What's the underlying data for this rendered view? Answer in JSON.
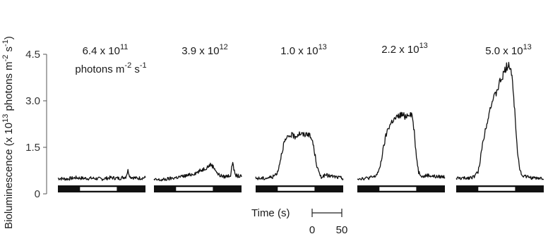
{
  "chart_data": {
    "type": "line",
    "ylabel": {
      "text": "Bioluminescence (x 10",
      "exp": "13",
      "text2": " photons m",
      "exp2": "-2",
      "text3": " s",
      "exp3": "-1",
      "text4": ")"
    },
    "ylim": [
      0,
      4.5
    ],
    "yticks": [
      {
        "value": 0,
        "label": "0"
      },
      {
        "value": 1.5,
        "label": "1.5"
      },
      {
        "value": 3.0,
        "label": "3.0"
      },
      {
        "value": 4.5,
        "label": "4.5"
      }
    ],
    "panel_x_range": [
      0,
      200
    ],
    "light_period": [
      50,
      135
    ],
    "time_scale": {
      "label": "Time (s)",
      "start": "0",
      "end": "50"
    },
    "first_panel_units": {
      "text": "photons m",
      "exp": "-2",
      "text2": " s",
      "exp2": "-1"
    },
    "series": [
      {
        "name": "6.4 x 10^11",
        "label": {
          "mantissa": "6.4 x 10",
          "exp": "11"
        },
        "x": [
          0,
          20,
          40,
          60,
          80,
          100,
          120,
          140,
          155,
          160,
          165,
          180,
          200
        ],
        "y": [
          0.5,
          0.48,
          0.52,
          0.5,
          0.5,
          0.48,
          0.52,
          0.5,
          0.55,
          0.75,
          0.55,
          0.5,
          0.52
        ]
      },
      {
        "name": "3.9 x 10^12",
        "label": {
          "mantissa": "3.9 x 10",
          "exp": "12"
        },
        "x": [
          0,
          20,
          40,
          60,
          80,
          100,
          120,
          130,
          140,
          145,
          150,
          160,
          175,
          180,
          185,
          200
        ],
        "y": [
          0.45,
          0.45,
          0.5,
          0.55,
          0.6,
          0.7,
          0.85,
          0.95,
          0.8,
          0.65,
          0.6,
          0.55,
          0.6,
          1.05,
          0.6,
          0.55
        ]
      },
      {
        "name": "1.0 x 10^13",
        "label": {
          "mantissa": "1.0 x 10",
          "exp": "13"
        },
        "x": [
          0,
          20,
          40,
          50,
          55,
          60,
          65,
          70,
          80,
          90,
          100,
          110,
          120,
          130,
          135,
          140,
          145,
          150,
          160,
          180,
          200
        ],
        "y": [
          0.5,
          0.5,
          0.55,
          0.7,
          1.0,
          1.35,
          1.65,
          1.75,
          1.9,
          1.85,
          1.95,
          1.9,
          1.95,
          1.7,
          1.3,
          0.9,
          0.65,
          0.55,
          0.6,
          0.55,
          0.5
        ]
      },
      {
        "name": "2.2 x 10^13",
        "label": {
          "mantissa": "2.2 x 10",
          "exp": "13"
        },
        "x": [
          0,
          20,
          40,
          50,
          55,
          60,
          65,
          70,
          80,
          90,
          100,
          110,
          120,
          125,
          130,
          135,
          140,
          150,
          160,
          180,
          200
        ],
        "y": [
          0.5,
          0.5,
          0.55,
          0.75,
          1.1,
          1.5,
          1.85,
          2.1,
          2.35,
          2.45,
          2.55,
          2.5,
          2.6,
          2.55,
          2.0,
          1.2,
          0.7,
          0.55,
          0.6,
          0.55,
          0.55
        ]
      },
      {
        "name": "5.0 x 10^13",
        "label": {
          "mantissa": "5.0 x 10",
          "exp": "13"
        },
        "x": [
          0,
          20,
          40,
          50,
          55,
          60,
          70,
          80,
          90,
          100,
          110,
          115,
          120,
          125,
          130,
          135,
          140,
          145,
          150,
          160,
          180,
          200
        ],
        "y": [
          0.5,
          0.5,
          0.55,
          0.7,
          1.1,
          1.6,
          2.3,
          2.9,
          3.2,
          3.6,
          3.9,
          4.1,
          4.2,
          4.0,
          3.4,
          2.4,
          1.4,
          0.8,
          0.6,
          0.55,
          0.5,
          0.5
        ]
      }
    ]
  }
}
